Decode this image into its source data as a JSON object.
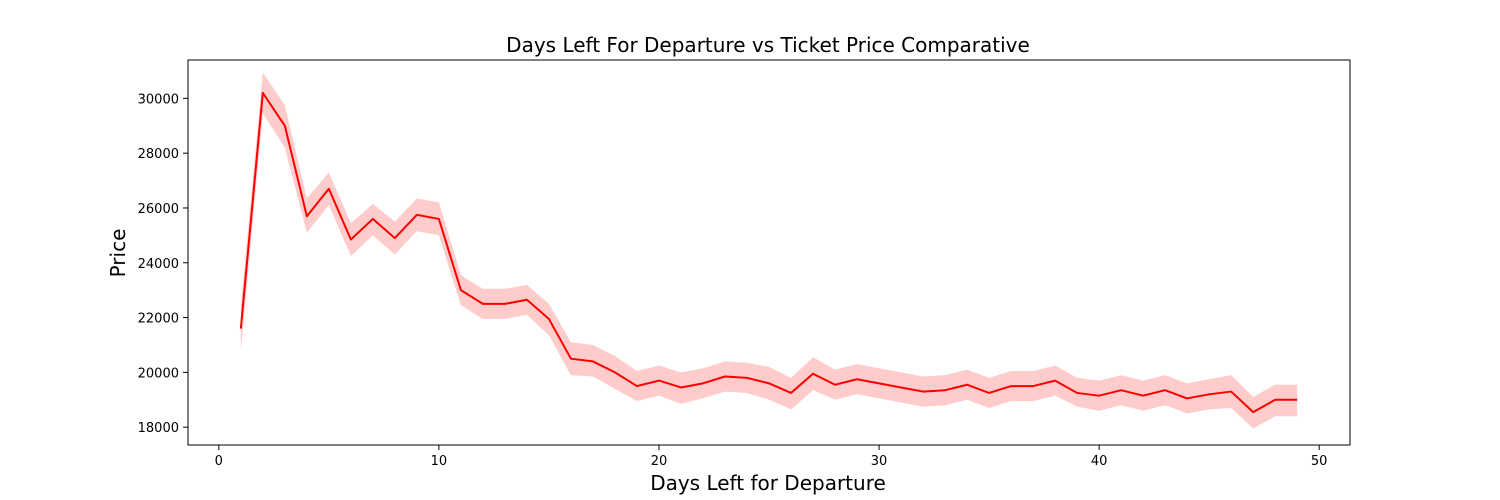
{
  "chart_data": {
    "type": "line",
    "title": "Days Left For Departure vs Ticket Price Comparative",
    "xlabel": "Days Left for Departure",
    "ylabel": "Price",
    "xlim": [
      -1.4,
      51.4
    ],
    "ylim": [
      17350,
      31400
    ],
    "xticks": [
      0,
      10,
      20,
      30,
      40,
      50
    ],
    "yticks": [
      18000,
      20000,
      22000,
      24000,
      26000,
      28000,
      30000
    ],
    "grid": false,
    "line_color": "#ff0000",
    "band_color": "#ff0000",
    "series": [
      {
        "x": [
          1,
          2,
          3,
          4,
          5,
          6,
          7,
          8,
          9,
          10,
          11,
          12,
          13,
          14,
          15,
          16,
          17,
          18,
          19,
          20,
          21,
          22,
          23,
          24,
          25,
          26,
          27,
          28,
          29,
          30,
          31,
          32,
          33,
          34,
          35,
          36,
          37,
          38,
          39,
          40,
          41,
          42,
          43,
          44,
          45,
          46,
          47,
          48,
          49
        ],
        "values": [
          21600,
          30200,
          29000,
          25700,
          26700,
          24850,
          25600,
          24900,
          25750,
          25600,
          23000,
          22500,
          22500,
          22650,
          21950,
          20500,
          20400,
          20000,
          19500,
          19700,
          19450,
          19600,
          19850,
          19800,
          19600,
          19250,
          19950,
          19550,
          19750,
          19600,
          19450,
          19300,
          19350,
          19550,
          19250,
          19500,
          19500,
          19700,
          19250,
          19150,
          19350,
          19150,
          19350,
          19050,
          19200,
          19300,
          18550,
          19000,
          19000
        ],
        "lower": [
          20750,
          29450,
          28200,
          25100,
          26100,
          24250,
          25000,
          24300,
          25150,
          25000,
          22450,
          21950,
          21950,
          22100,
          21350,
          19900,
          19850,
          19400,
          18950,
          19150,
          18850,
          19050,
          19300,
          19250,
          19000,
          18650,
          19350,
          19000,
          19200,
          19050,
          18900,
          18750,
          18800,
          19000,
          18700,
          18950,
          18950,
          19150,
          18750,
          18600,
          18800,
          18600,
          18800,
          18500,
          18650,
          18700,
          17950,
          18400,
          18400
        ],
        "upper": [
          22400,
          30950,
          29750,
          26350,
          27300,
          25450,
          26150,
          25500,
          26350,
          26200,
          23550,
          23050,
          23050,
          23200,
          22500,
          21100,
          21000,
          20600,
          20050,
          20250,
          20000,
          20150,
          20400,
          20350,
          20200,
          19800,
          20550,
          20100,
          20300,
          20150,
          20000,
          19850,
          19900,
          20100,
          19800,
          20050,
          20050,
          20250,
          19800,
          19700,
          19900,
          19700,
          19900,
          19600,
          19750,
          19900,
          19100,
          19550,
          19550
        ]
      }
    ]
  }
}
